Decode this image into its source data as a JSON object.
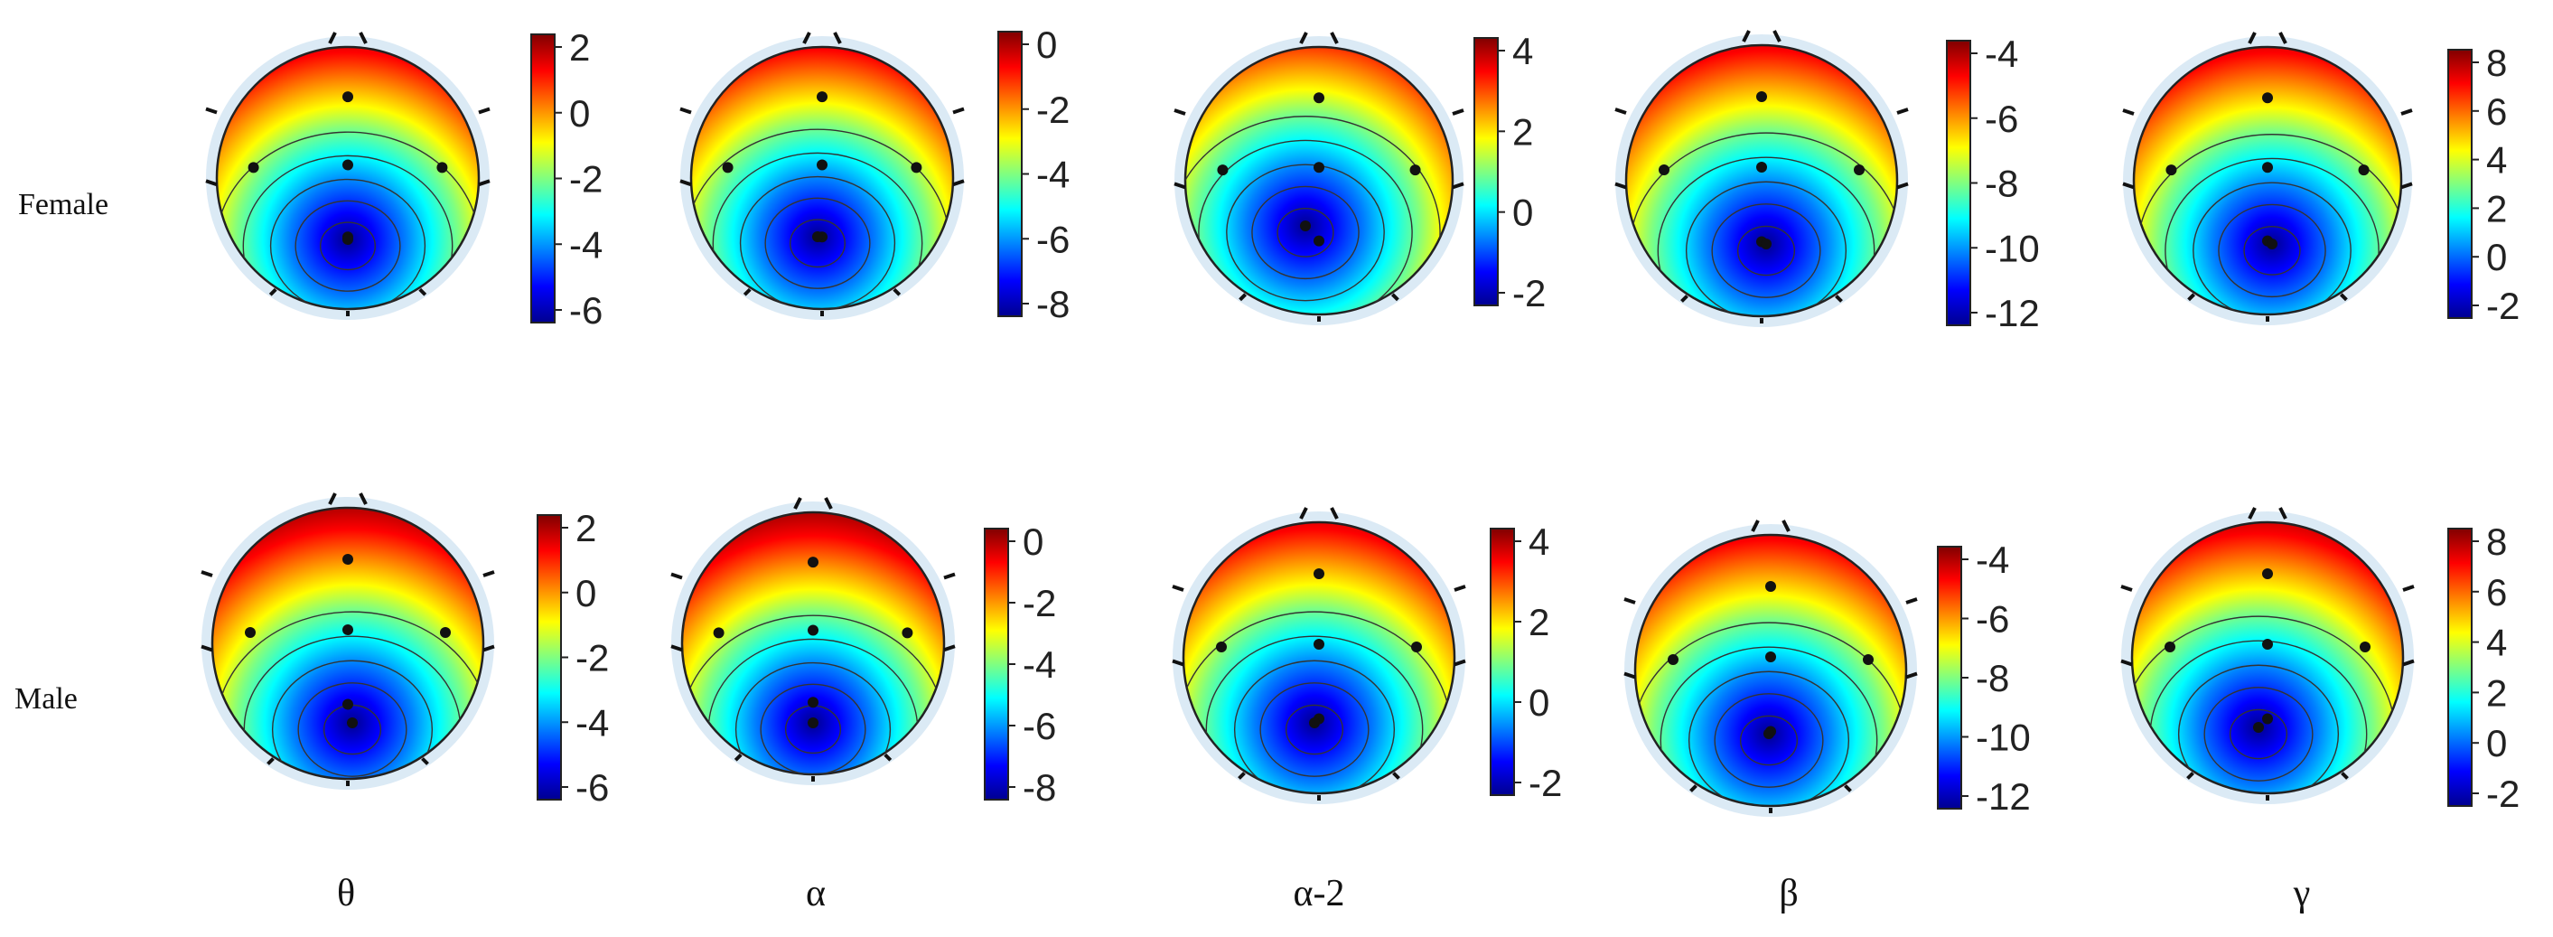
{
  "row_labels": [
    "Female",
    "Male"
  ],
  "band_labels": [
    "θ",
    "α",
    "α-2",
    "β",
    "γ"
  ],
  "colormap": [
    "#00008f",
    "#0000ff",
    "#0080ff",
    "#00ffff",
    "#80ff80",
    "#ffff00",
    "#ff8000",
    "#ff0000",
    "#800000"
  ],
  "colorbars": {
    "female": [
      {
        "ticks": [
          "2",
          "0",
          "-2",
          "-4",
          "-6"
        ]
      },
      {
        "ticks": [
          "0",
          "-2",
          "-4",
          "-6",
          "-8"
        ]
      },
      {
        "ticks": [
          "4",
          "2",
          "0",
          "-2"
        ]
      },
      {
        "ticks": [
          "-4",
          "-6",
          "-8",
          "-10",
          "-12"
        ]
      },
      {
        "ticks": [
          "8",
          "6",
          "4",
          "2",
          "0",
          "-2"
        ]
      }
    ],
    "male": [
      {
        "ticks": [
          "2",
          "0",
          "-2",
          "-4",
          "-6"
        ]
      },
      {
        "ticks": [
          "0",
          "-2",
          "-4",
          "-6",
          "-8"
        ]
      },
      {
        "ticks": [
          "4",
          "2",
          "0",
          "-2"
        ]
      },
      {
        "ticks": [
          "-4",
          "-6",
          "-8",
          "-10",
          "-12"
        ]
      },
      {
        "ticks": [
          "8",
          "6",
          "4",
          "2",
          "0",
          "-2"
        ]
      }
    ]
  }
}
